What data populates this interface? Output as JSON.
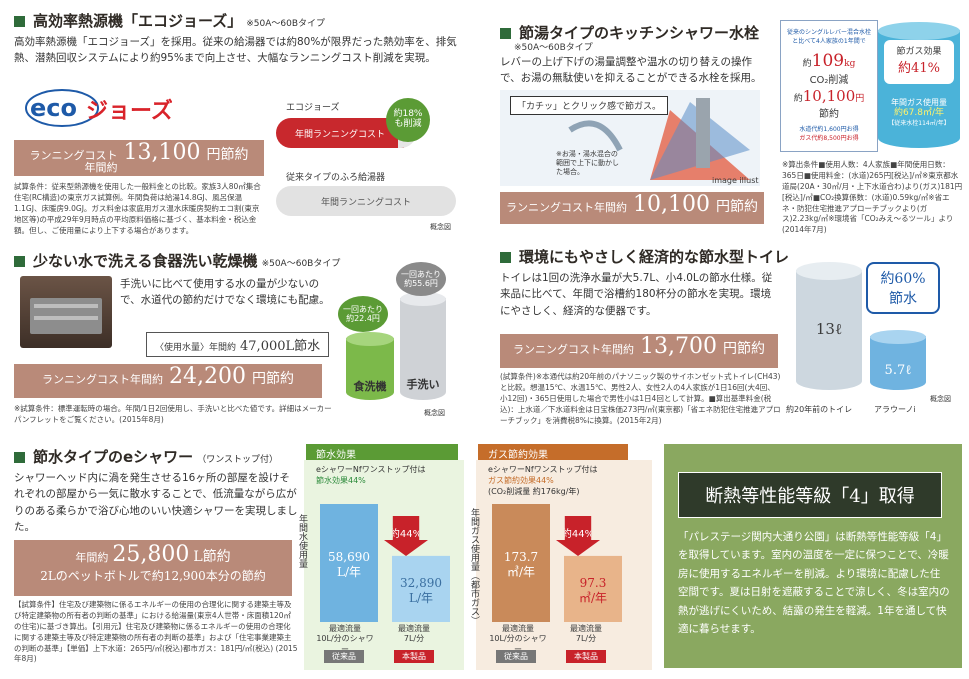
{
  "eco": {
    "title": "高効率熱源機「エコジョーズ」",
    "subtitle": "※50A〜60Bタイプ",
    "body": "高効率熱源機「エコジョーズ」を採用。従来の給湯器では約80%が限界だった熱効率を、排気熱、潜熱回収システムにより約95%まで向上させ、大幅なランニングコスト削減を実現。",
    "logo_text": "ecoジョーズ",
    "cost_label": "ランニングコスト",
    "cost_label2": "年間約",
    "cost_value": "13,100",
    "cost_unit": "円節約",
    "note": "試算条件：従来型熱源機を使用した一般料金との比較。家族3人80㎡集合住宅(RC構造)の東京ガス試算例。年間負荷は給湯14.8GJ、風呂保温1.1GJ、床暖房9.0GJ。ガス料金は家庭用ガス温水床暖房契約エコ割(東京地区等)の平成29年9月時点の平均原料価格に基づく、基本料金・税込金額。但し、ご使用量により上下する場合があります。",
    "ecojozu_label": "エコジョーズ",
    "ecojozu_bar": "年間ランニングコスト",
    "reduce_badge_1": "約18%",
    "reduce_badge_2": "も削減",
    "conventional_label": "従来タイプのふろ給湯器",
    "conventional_bar": "年間ランニングコスト",
    "concept": "概念図"
  },
  "dish": {
    "title": "少ない水で洗える食器洗い乾燥機",
    "subtitle": "※50A〜60Bタイプ",
    "body": "手洗いに比べて使用する水の量が少ないので、水道代の節約だけでなく環境にも配慮。",
    "usage_label": "〈使用水量〉年間約",
    "usage_value": "47,000L節水",
    "cost_label": "ランニングコスト年間約",
    "cost_value": "24,200",
    "cost_unit": "円節約",
    "note": "※試算条件：標準運転時の場合。年間/1日2回使用し、手洗いと比べた値です。詳細はメーカーパンフレットをご覧ください。(2015年8月)",
    "dishwasher_cap_1": "一回あたり",
    "dishwasher_cap_2": "約22.4円",
    "dishwasher_label": "食洗機",
    "hand_cap_1": "一回あたり",
    "hand_cap_2": "約55.6円",
    "hand_label": "手洗い",
    "concept": "概念図"
  },
  "shower": {
    "title": "節水タイプのeシャワー",
    "subtitle": "（ワンストップ付）",
    "body": "シャワーヘッド内に渦を発生させる16ヶ所の部屋を設けそれぞれの部屋から一気に散水することで、低流量ながら広がりのある柔らかで浴び心地のいい快適シャワーを実現しました。",
    "cost_label": "年間約",
    "cost_value": "25,800",
    "cost_unit": "L節約",
    "bottle": "2Lのペットボトルで約12,900本分の節約",
    "note": "【試算条件】住宅及び建築物に係るエネルギーの使用の合理化に関する建築主等及び特定建築物の所有者の判断の基準」における給湯量(東京4人世帯・床面積120㎡の住宅)に基づき算出。【引用元】住宅及び建築物に係るエネルギーの使用の合理化に関する建築主等及び特定建築物の所有者の判断の基準」および「住宅事業建築主の判断の基準」【単価】上下水道：265円/㎥(税込)都市ガス：181円/㎥(税込) (2015年8月)"
  },
  "water_chart": {
    "header": "節水効果",
    "caption_1": "eシャワーNfワンストップ付は",
    "caption_2": "節水効果44%",
    "y_label": "年間水使用量",
    "reduction": "約44%",
    "flow_label": "最適流量",
    "conventional_flow": "10L/分のシャワー",
    "product_flow": "7L/分",
    "conventional_badge": "従来品",
    "product_badge": "本製品"
  },
  "gas_chart": {
    "header": "ガス節約効果",
    "caption_1": "eシャワーNfワンストップ付は",
    "caption_2": "ガス節約効果44%",
    "caption_3": "(CO₂削減量 約176kg/年)",
    "y_label": "年間ガス使用量（都市ガス）",
    "reduction": "約44%",
    "flow_label": "最適流量",
    "conventional_flow": "10L/分のシャワー",
    "product_flow": "7L/分",
    "conventional_badge": "従来品",
    "product_badge": "本製品"
  },
  "chart_data": [
    {
      "type": "bar",
      "title": "節水効果",
      "categories": [
        "従来品",
        "本製品"
      ],
      "values": [
        58690,
        32890
      ],
      "value_labels": [
        "58,690",
        "32,890"
      ],
      "unit": "L/年",
      "ylabel": "年間水使用量",
      "colors": [
        "#6fb3e0",
        "#a9d4f0"
      ]
    },
    {
      "type": "bar",
      "title": "ガス節約効果",
      "categories": [
        "従来品",
        "本製品"
      ],
      "values": [
        173.7,
        97.3
      ],
      "value_labels": [
        "173.7",
        "97.3"
      ],
      "unit": "㎥/年",
      "ylabel": "年間ガス使用量（都市ガス）",
      "colors": [
        "#c98a5a",
        "#e8b48a"
      ]
    }
  ],
  "faucet": {
    "title": "節湯タイプのキッチンシャワー水栓",
    "subtitle": "※50A〜60Bタイプ",
    "body": "レバーの上げ下げの湯量調整や温水の切り替えの操作で、お湯の無駄使いを抑えることができる水栓を採用。",
    "click": "「カチッ」とクリック感で節ガス。",
    "note_in": "※お湯・湯水混合の範囲で上下に動かした場合。",
    "illust": "image illust",
    "cost_label": "ランニングコスト年間約",
    "cost_value": "10,100",
    "cost_unit": "円節約",
    "card_line1": "従来のシングルレバー混合水栓",
    "card_line2": "と比べて4人家族の1年間で",
    "card_water_pre": "約",
    "card_water": "109",
    "card_water_unit": "kg",
    "card_co2": "CO₂削減",
    "card_yen_pre": "約",
    "card_yen": "10,100",
    "card_yen_unit": "円",
    "card_save": "節約",
    "card_water_cost": "水道代約1,600円お得",
    "card_gas_cost": "ガス代約8,500円お得",
    "cyl_title": "節ガス効果",
    "cyl_pct": "約41%",
    "cyl_usage_1": "年間ガス使用量",
    "cyl_usage_2": "約67.8㎥/年",
    "cyl_usage_3": "【従来水栓114㎥/年】",
    "note": "※算出条件■使用人数：4人家族■年間使用日数：365日■使用料金：(水道)265円[税込]/㎥※東京都水道局(20A・30㎥/月・上下水道合わ)より(ガス)181円[税込]/㎥■CO₂換算係数：(水道)0.59kg/㎥※省エネ・防犯住宅推進アプローチブックより(ガス)2.23kg/㎥※環境省「CO₂みえ〜るツール」より(2014年7月)"
  },
  "toilet": {
    "title": "環境にもやさしく経済的な節水型トイレ",
    "body": "トイレは1回の洗浄水量が大5.7L、小4.0Lの節水仕様。従来品に比べて、年間で浴槽約180杯分の節水を実現。環境にやさしく、経済的な便器です。",
    "cost_label": "ランニングコスト年間約",
    "cost_value": "13,700",
    "cost_unit": "円節約",
    "note": "(試算条件)※本通代は約20年前のパナソニック製のサイホンゼット式トイレ(CH43)と比較。想温15℃、水温15℃、男性2人、女性2人の4人家族が1日16回(大4回、小12回)・365日使用した場合で男性小は1日4回として計算。■算出基準料金(税込)：上水道／下水道料金は日宝株価273円/㎥(東京都)「省エネ防犯住宅推進アプローチブック」を消費税8%に換算。(2015年2月)",
    "big_val": "13ℓ",
    "small_val": "5.7ℓ",
    "bubble_1": "約60%",
    "bubble_2": "節水",
    "old_label": "約20年前のトイレ",
    "new_label": "アラウーノi",
    "concept": "概念図"
  },
  "insulation": {
    "title": "断熱等性能等級「4」取得",
    "body": "「パレステージ関内大通り公園」は断熱等性能等級「4」を取得しています。室内の温度を一定に保つことで、冷暖房に使用するエネルギーを削減。より環境に配慮した住空間です。夏は日射を遮蔽することで涼しく、冬は室内の熱が逃げにくいため、結露の発生を軽減。1年を通して快適に暮らせます。"
  }
}
